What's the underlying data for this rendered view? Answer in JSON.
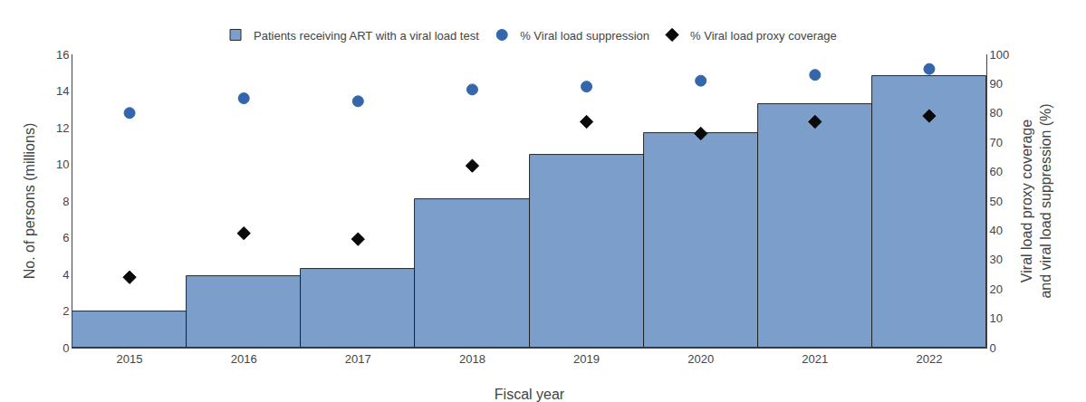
{
  "chart_data": {
    "type": "bar",
    "x_label": "Fiscal year",
    "y_label": "No. of persons (millions)",
    "y2_label": "Viral load proxy coverage\nand viral load suppression (%)",
    "categories": [
      "2015",
      "2016",
      "2017",
      "2018",
      "2019",
      "2020",
      "2021",
      "2022"
    ],
    "series": [
      {
        "name": "Patients receiving ART with a viral load test",
        "type": "bar",
        "color": "#7B9FCA",
        "values": [
          2.0,
          3.9,
          4.3,
          8.1,
          10.5,
          11.7,
          13.3,
          14.8
        ]
      },
      {
        "name": "% Viral load suppression",
        "type": "scatter",
        "marker": "circle",
        "color": "#3366AA",
        "axis": "y2",
        "values": [
          80,
          85,
          84,
          88,
          89,
          91,
          93,
          95
        ]
      },
      {
        "name": "% Viral load proxy coverage",
        "type": "scatter",
        "marker": "diamond",
        "color": "#0a0a0a",
        "axis": "y2",
        "values": [
          24,
          39,
          37,
          62,
          77,
          73,
          77,
          79
        ]
      }
    ],
    "ylim": [
      0,
      16
    ],
    "yticks": [
      0,
      2,
      4,
      6,
      8,
      10,
      12,
      14,
      16
    ],
    "y2lim": [
      0,
      100
    ],
    "y2ticks": [
      0,
      10,
      20,
      30,
      40,
      50,
      60,
      70,
      80,
      90,
      100
    ],
    "grid": false,
    "legend": "top"
  }
}
